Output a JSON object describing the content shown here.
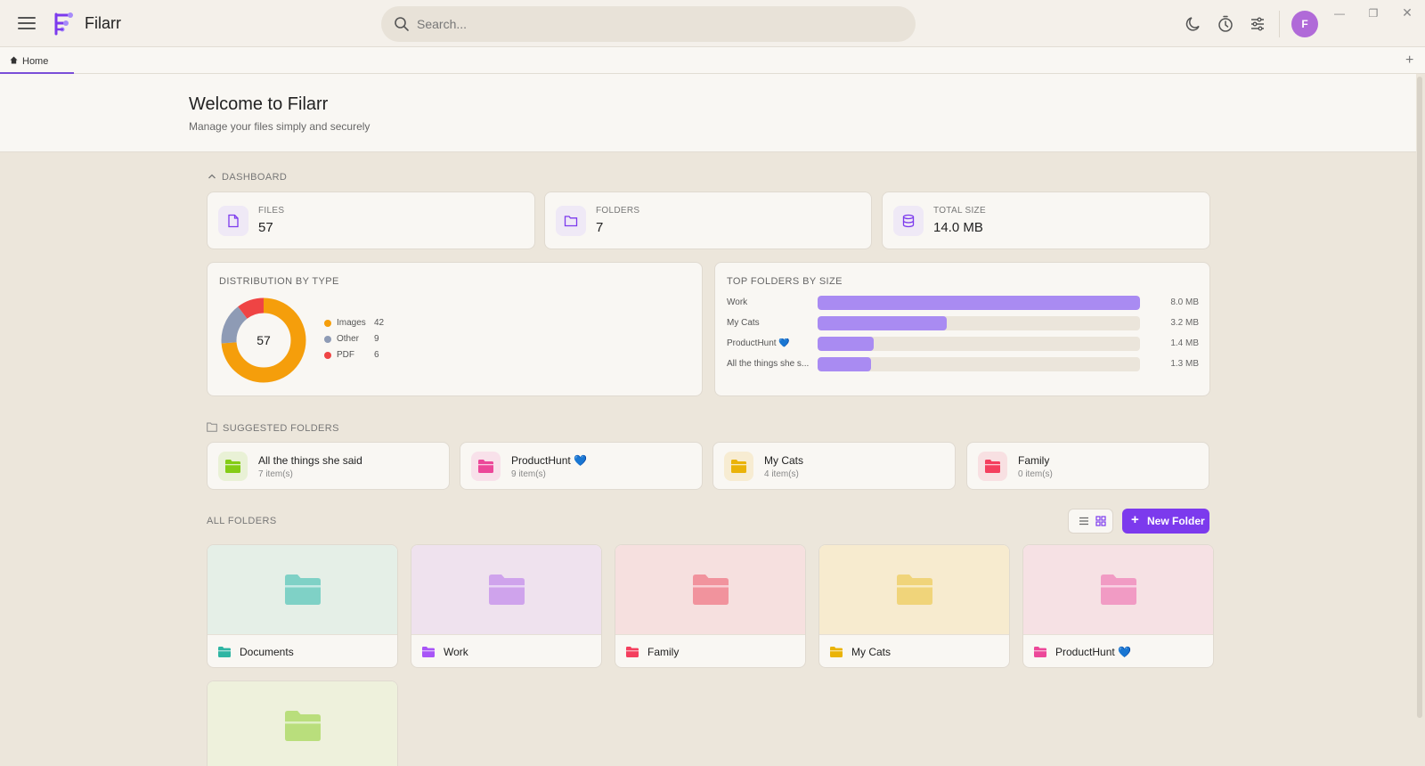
{
  "app": {
    "name": "Filarr"
  },
  "search": {
    "placeholder": "Search..."
  },
  "colors": {
    "accent": "#7c3aed",
    "bar": "#a98bf2",
    "avatar": "#b06ad8"
  },
  "user": {
    "initial": "F"
  },
  "tabs": [
    {
      "label": "Home"
    }
  ],
  "header": {
    "title": "Welcome to Filarr",
    "subtitle": "Manage your files simply and securely"
  },
  "dashboard": {
    "label": "DASHBOARD",
    "stats": [
      {
        "label": "FILES",
        "value": "57",
        "icon": "file-icon"
      },
      {
        "label": "FOLDERS",
        "value": "7",
        "icon": "folder-icon"
      },
      {
        "label": "TOTAL SIZE",
        "value": "14.0 MB",
        "icon": "database-icon"
      }
    ],
    "distribution": {
      "title": "DISTRIBUTION BY TYPE",
      "total": "57",
      "items": [
        {
          "name": "Images",
          "count": "42",
          "color": "#f59e0b"
        },
        {
          "name": "Other",
          "count": "9",
          "color": "#8e9bb5"
        },
        {
          "name": "PDF",
          "count": "6",
          "color": "#ef4444"
        }
      ]
    },
    "top_folders": {
      "title": "TOP FOLDERS BY SIZE",
      "items": [
        {
          "name": "Work",
          "size": "8.0 MB",
          "fraction": 1.0
        },
        {
          "name": "My Cats",
          "size": "3.2 MB",
          "fraction": 0.4
        },
        {
          "name": "ProductHunt 💙",
          "size": "1.4 MB",
          "fraction": 0.175
        },
        {
          "name": "All the things she s...",
          "size": "1.3 MB",
          "fraction": 0.165
        }
      ]
    }
  },
  "suggested": {
    "label": "SUGGESTED FOLDERS",
    "items": [
      {
        "name": "All the things she said",
        "count": "7 item(s)",
        "color": "#84cc16",
        "bg": "#e9f1d6"
      },
      {
        "name": "ProductHunt 💙",
        "count": "9 item(s)",
        "color": "#ec4899",
        "bg": "#f8e1ea"
      },
      {
        "name": "My Cats",
        "count": "4 item(s)",
        "color": "#eab308",
        "bg": "#f7ecd2"
      },
      {
        "name": "Family",
        "count": "0 item(s)",
        "color": "#f43f5e",
        "bg": "#f8e0e2"
      }
    ]
  },
  "all_folders": {
    "label": "ALL FOLDERS",
    "new_folder_label": "New Folder",
    "items": [
      {
        "name": "Documents",
        "color": "#2fb5a3",
        "bg": "#e5efe7",
        "big": "#7fd1c6"
      },
      {
        "name": "Work",
        "color": "#a855f7",
        "bg": "#efe2ee",
        "big": "#cfa3ec"
      },
      {
        "name": "Family",
        "color": "#f43f5e",
        "bg": "#f6e0df",
        "big": "#f1939d"
      },
      {
        "name": "My Cats",
        "color": "#eab308",
        "bg": "#f7ebcf",
        "big": "#f0d47a"
      },
      {
        "name": "ProductHunt 💙",
        "color": "#ec4899",
        "bg": "#f6e1e4",
        "big": "#f19bc4"
      },
      {
        "name": "",
        "color": "#84cc16",
        "bg": "#eef1dc",
        "big": "#b9de7c"
      }
    ]
  }
}
